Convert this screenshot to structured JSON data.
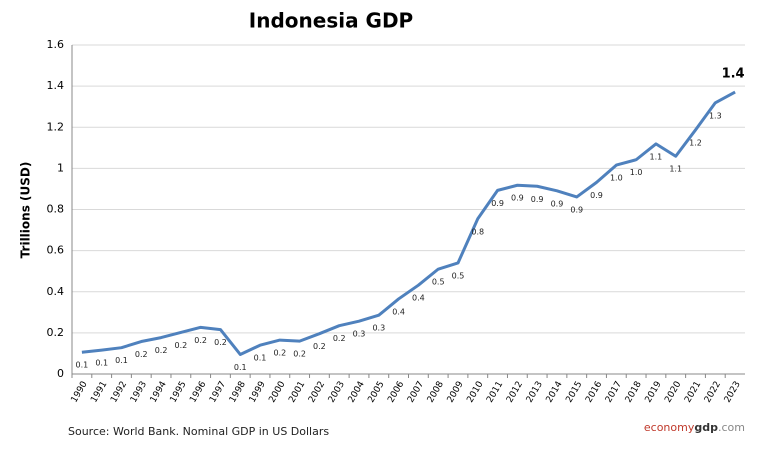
{
  "chart_data": {
    "type": "line",
    "title": "Indonesia GDP",
    "y_label": "Trillions (USD)",
    "categories": [
      "1990",
      "1991",
      "1992",
      "1993",
      "1994",
      "1995",
      "1996",
      "1997",
      "1998",
      "1999",
      "2000",
      "2001",
      "2002",
      "2003",
      "2004",
      "2005",
      "2006",
      "2007",
      "2008",
      "2009",
      "2010",
      "2011",
      "2012",
      "2013",
      "2014",
      "2015",
      "2016",
      "2017",
      "2018",
      "2019",
      "2020",
      "2021",
      "2022",
      "2023"
    ],
    "series": [
      {
        "name": "GDP",
        "color": "#4f81bd",
        "values": [
          0.106,
          0.116,
          0.128,
          0.158,
          0.177,
          0.202,
          0.227,
          0.216,
          0.095,
          0.14,
          0.165,
          0.16,
          0.196,
          0.235,
          0.257,
          0.286,
          0.365,
          0.432,
          0.51,
          0.54,
          0.755,
          0.893,
          0.918,
          0.913,
          0.891,
          0.861,
          0.932,
          1.016,
          1.042,
          1.119,
          1.059,
          1.187,
          1.319,
          1.371
        ],
        "value_labels": [
          "0.1",
          "0.1",
          "0.1",
          "0.2",
          "0.2",
          "0.2",
          "0.2",
          "0.2",
          "0.1",
          "0.1",
          "0.2",
          "0.2",
          "0.2",
          "0.2",
          "0.3",
          "0.3",
          "0.4",
          "0.4",
          "0.5",
          "0.5",
          "0.8",
          "0.9",
          "0.9",
          "0.9",
          "0.9",
          "0.9",
          "0.9",
          "1.0",
          "1.0",
          "1.1",
          "1.1",
          "1.2",
          "1.3",
          "1.4"
        ]
      }
    ],
    "ylim": [
      0,
      1.6
    ],
    "yticks": [
      0,
      0.2,
      0.4,
      0.6,
      0.8,
      1,
      1.2,
      1.4,
      1.6
    ],
    "grid": true,
    "source": "Source: World Bank.  Nominal GDP in US Dollars",
    "brand": [
      "economy",
      "gdp",
      ".com"
    ]
  }
}
